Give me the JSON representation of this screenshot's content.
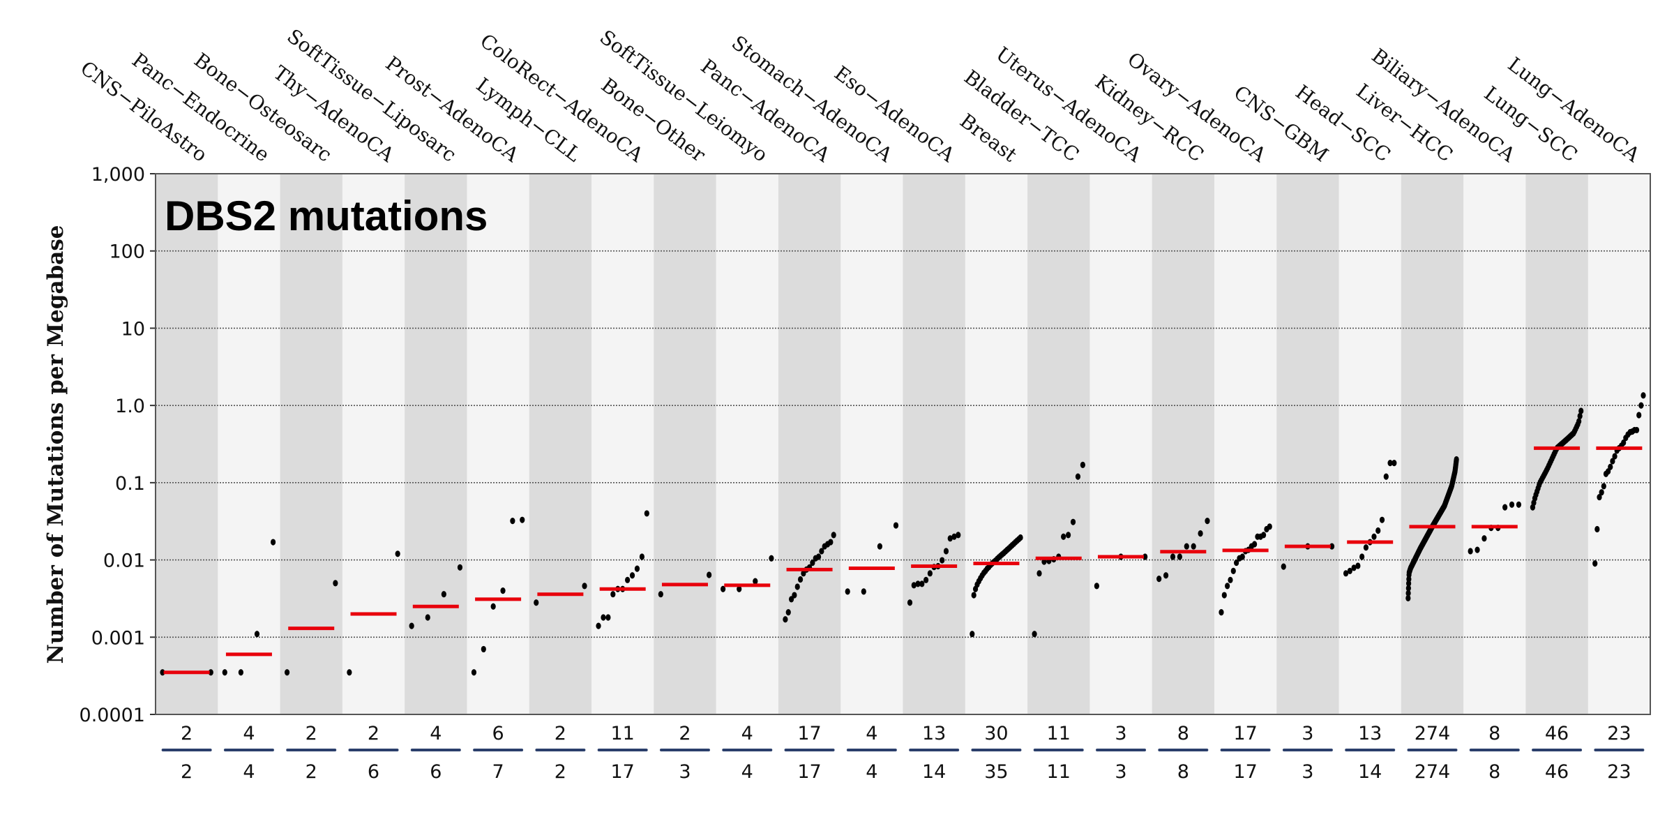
{
  "chart_data": {
    "type": "scatter",
    "title": "DBS2 mutations",
    "ylabel": "Number of Mutations per Megabase",
    "xlabel": "",
    "yscale": "log",
    "ylim": [
      0.0001,
      1000
    ],
    "yticks": [
      "1,000",
      "100",
      "10",
      "1.0",
      "0.1",
      "0.01",
      "0.001",
      "0.0001"
    ],
    "ytick_values": [
      1000,
      100,
      10,
      1,
      0.1,
      0.01,
      0.001,
      0.0001
    ],
    "grid": true,
    "colors": {
      "median": "#e8000b",
      "point": "#000000",
      "band_dark": "#dcdcdc",
      "band_light": "#f4f4f4",
      "count_line": "#2b3f6b"
    },
    "groups": [
      {
        "name": "CNS−PiloAstro",
        "count_top": "2",
        "count_bottom": "2",
        "median": 0.00035,
        "points": [
          0.00035,
          0.00035
        ]
      },
      {
        "name": "Panc−Endocrine",
        "count_top": "4",
        "count_bottom": "4",
        "median": 0.0006,
        "points": [
          0.00035,
          0.00035,
          0.0011,
          0.017
        ]
      },
      {
        "name": "Bone−Osteosarc",
        "count_top": "2",
        "count_bottom": "2",
        "median": 0.0013,
        "points": [
          0.00035,
          0.005
        ]
      },
      {
        "name": "Thy−AdenoCA",
        "count_top": "2",
        "count_bottom": "6",
        "median": 0.002,
        "points": [
          0.00035,
          0.012
        ]
      },
      {
        "name": "SoftTissue−Liposarc",
        "count_top": "4",
        "count_bottom": "6",
        "median": 0.0025,
        "points": [
          0.0014,
          0.0018,
          0.0036,
          0.008
        ]
      },
      {
        "name": "Prost−AdenoCA",
        "count_top": "6",
        "count_bottom": "7",
        "median": 0.0031,
        "points": [
          0.00035,
          0.0007,
          0.0025,
          0.004,
          0.032,
          0.033
        ]
      },
      {
        "name": "Lymph−CLL",
        "count_top": "2",
        "count_bottom": "2",
        "median": 0.0036,
        "points": [
          0.0028,
          0.0046
        ]
      },
      {
        "name": "ColoRect−AdenoCA",
        "count_top": "11",
        "count_bottom": "17",
        "median": 0.0042,
        "points": [
          0.0014,
          0.0018,
          0.0018,
          0.0036,
          0.0042,
          0.0042,
          0.0055,
          0.0063,
          0.0077,
          0.011,
          0.04
        ]
      },
      {
        "name": "Bone−Other",
        "count_top": "2",
        "count_bottom": "3",
        "median": 0.0048,
        "points": [
          0.0036,
          0.0064
        ]
      },
      {
        "name": "SoftTissue−Leiomyo",
        "count_top": "4",
        "count_bottom": "4",
        "median": 0.0047,
        "points": [
          0.0042,
          0.0042,
          0.0053,
          0.0105
        ]
      },
      {
        "name": "Panc−AdenoCA",
        "count_top": "17",
        "count_bottom": "17",
        "median": 0.0075,
        "points": [
          0.0017,
          0.0021,
          0.0031,
          0.0035,
          0.0045,
          0.0056,
          0.0067,
          0.0075,
          0.008,
          0.0092,
          0.0105,
          0.011,
          0.013,
          0.015,
          0.016,
          0.017,
          0.021
        ]
      },
      {
        "name": "Stomach−AdenoCA",
        "count_top": "4",
        "count_bottom": "4",
        "median": 0.0078,
        "points": [
          0.0039,
          0.0039,
          0.015,
          0.028
        ]
      },
      {
        "name": "Eso−AdenoCA",
        "count_top": "13",
        "count_bottom": "14",
        "median": 0.0083,
        "points": [
          0.0028,
          0.0047,
          0.0049,
          0.0049,
          0.0055,
          0.0067,
          0.0081,
          0.0083,
          0.0099,
          0.013,
          0.019,
          0.02,
          0.021
        ]
      },
      {
        "name": "Breast",
        "count_top": "30",
        "count_bottom": "35",
        "median": 0.009,
        "points": [
          0.0011,
          0.0035,
          0.0042,
          0.0048,
          0.0053,
          0.0058,
          0.0063,
          0.0068,
          0.0072,
          0.0077,
          0.0081,
          0.0086,
          0.009,
          0.0094,
          0.0098,
          0.0103,
          0.0108,
          0.0113,
          0.0118,
          0.0123,
          0.0129,
          0.0135,
          0.0141,
          0.0148,
          0.0155,
          0.0162,
          0.017,
          0.0178,
          0.0186,
          0.0195
        ]
      },
      {
        "name": "Bladder−TCC",
        "count_top": "11",
        "count_bottom": "11",
        "median": 0.0105,
        "points": [
          0.0011,
          0.0067,
          0.0095,
          0.0097,
          0.0102,
          0.011,
          0.02,
          0.021,
          0.031,
          0.12,
          0.17
        ]
      },
      {
        "name": "Uterus−AdenoCA",
        "count_top": "3",
        "count_bottom": "3",
        "median": 0.011,
        "points": [
          0.0046,
          0.011,
          0.011
        ]
      },
      {
        "name": "Kidney−RCC",
        "count_top": "8",
        "count_bottom": "8",
        "median": 0.0128,
        "points": [
          0.0057,
          0.0063,
          0.011,
          0.011,
          0.015,
          0.015,
          0.022,
          0.032
        ]
      },
      {
        "name": "Ovary−AdenoCA",
        "count_top": "17",
        "count_bottom": "17",
        "median": 0.0133,
        "points": [
          0.0021,
          0.0035,
          0.0046,
          0.0055,
          0.0072,
          0.0092,
          0.0105,
          0.011,
          0.013,
          0.0135,
          0.015,
          0.016,
          0.02,
          0.02,
          0.021,
          0.025,
          0.027
        ]
      },
      {
        "name": "CNS−GBM",
        "count_top": "3",
        "count_bottom": "3",
        "median": 0.015,
        "points": [
          0.0082,
          0.015,
          0.015
        ]
      },
      {
        "name": "Head−SCC",
        "count_top": "13",
        "count_bottom": "14",
        "median": 0.017,
        "points": [
          0.0067,
          0.0072,
          0.0079,
          0.0084,
          0.011,
          0.0145,
          0.017,
          0.02,
          0.024,
          0.033,
          0.12,
          0.18,
          0.18
        ]
      },
      {
        "name": "Liver−HCC",
        "count_top": "274",
        "count_bottom": "274",
        "median": 0.027,
        "quantiles": {
          "q": [
            0,
            0.01,
            0.02,
            0.05,
            0.25,
            0.5,
            0.75,
            0.9,
            0.97,
            1
          ],
          "v": [
            0.0032,
            0.0048,
            0.0068,
            0.0078,
            0.014,
            0.027,
            0.05,
            0.09,
            0.14,
            0.2
          ]
        }
      },
      {
        "name": "Biliary−AdenoCA",
        "count_top": "8",
        "count_bottom": "8",
        "median": 0.027,
        "points": [
          0.013,
          0.0135,
          0.019,
          0.026,
          0.026,
          0.048,
          0.052,
          0.052
        ]
      },
      {
        "name": "Lung−SCC",
        "count_top": "46",
        "count_bottom": "46",
        "median": 0.28,
        "quantiles": {
          "q": [
            0,
            0.05,
            0.15,
            0.3,
            0.5,
            0.7,
            0.85,
            0.95,
            1
          ],
          "v": [
            0.048,
            0.065,
            0.1,
            0.15,
            0.28,
            0.36,
            0.44,
            0.6,
            0.85
          ]
        }
      },
      {
        "name": "Lung−AdenoCA",
        "count_top": "23",
        "count_bottom": "23",
        "median": 0.28,
        "points": [
          0.009,
          0.025,
          0.065,
          0.075,
          0.09,
          0.13,
          0.14,
          0.16,
          0.19,
          0.22,
          0.26,
          0.28,
          0.3,
          0.33,
          0.38,
          0.42,
          0.45,
          0.46,
          0.48,
          0.48,
          0.75,
          1.0,
          1.35
        ]
      }
    ]
  }
}
